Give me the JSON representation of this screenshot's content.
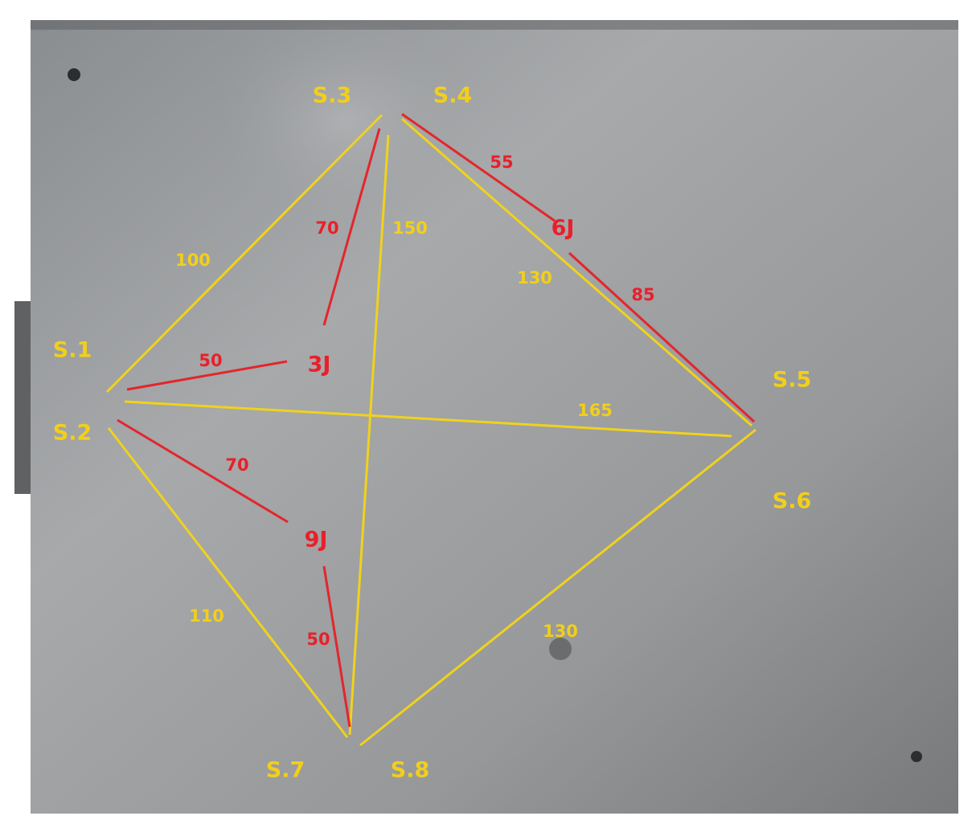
{
  "sensors": [
    "S.1",
    "S.2",
    "S.3",
    "S.4",
    "S.5",
    "S.6",
    "S.7",
    "S.8"
  ],
  "impacts": [
    "3J",
    "6J",
    "9J"
  ],
  "sensor_distances": [
    100,
    150,
    130,
    165,
    110,
    130
  ],
  "impact_distances": [
    70,
    55,
    85,
    50,
    70,
    50
  ]
}
